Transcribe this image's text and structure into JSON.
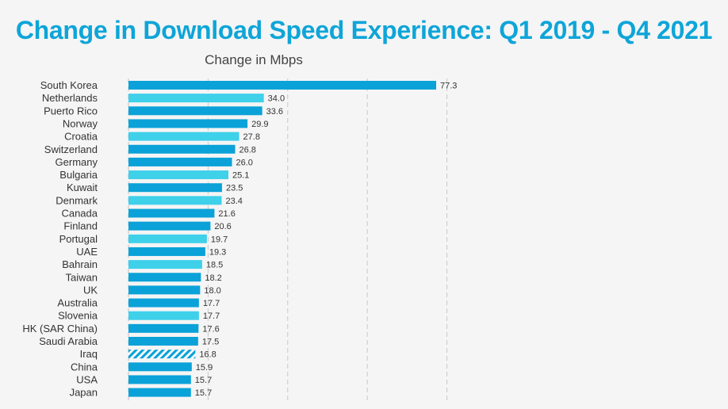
{
  "title": "Change in Download Speed Experience: Q1 2019 - Q4 2021",
  "colors": {
    "title": "#0ea5d8",
    "dark_bar": "#0aa2d8",
    "light_bar": "#3fd0ea",
    "hatch_bar": "#0aa2d8",
    "grid": "#c8c8c8",
    "background": "#f5f5f5"
  },
  "chart_data": {
    "type": "bar",
    "orientation": "horizontal",
    "title": "Change in Download Speed Experience: Q1 2019 - Q4 2021",
    "subtitle": "Change in Mbps",
    "xlabel": "Change in Mbps",
    "ylabel": "",
    "xlim": [
      0,
      80
    ],
    "grid": true,
    "categories": [
      "South Korea",
      "Netherlands",
      "Puerto Rico",
      "Norway",
      "Croatia",
      "Switzerland",
      "Germany",
      "Bulgaria",
      "Kuwait",
      "Denmark",
      "Canada",
      "Finland",
      "Portugal",
      "UAE",
      "Bahrain",
      "Taiwan",
      "UK",
      "Australia",
      "Slovenia",
      "HK (SAR China)",
      "Saudi Arabia",
      "Iraq",
      "China",
      "USA",
      "Japan"
    ],
    "values": [
      77.3,
      34.0,
      33.6,
      29.9,
      27.8,
      26.8,
      26.0,
      25.1,
      23.5,
      23.4,
      21.6,
      20.6,
      19.7,
      19.3,
      18.5,
      18.2,
      18.0,
      17.7,
      17.7,
      17.6,
      17.5,
      16.8,
      15.9,
      15.7,
      15.7
    ],
    "value_labels": [
      "77.3",
      "34.0",
      "33.6",
      "29.9",
      "27.8",
      "26.8",
      "26.0",
      "25.1",
      "23.5",
      "23.4",
      "21.6",
      "20.6",
      "19.7",
      "19.3",
      "18.5",
      "18.2",
      "18.0",
      "17.7",
      "17.7",
      "17.6",
      "17.5",
      "16.8",
      "15.9",
      "15.7",
      "15.7"
    ],
    "bar_styles": [
      "dark",
      "light",
      "dark",
      "dark",
      "light",
      "dark",
      "dark",
      "light",
      "dark",
      "light",
      "dark",
      "dark",
      "light",
      "dark",
      "light",
      "dark",
      "dark",
      "dark",
      "light",
      "dark",
      "dark",
      "hatched",
      "dark",
      "dark",
      "dark"
    ]
  }
}
